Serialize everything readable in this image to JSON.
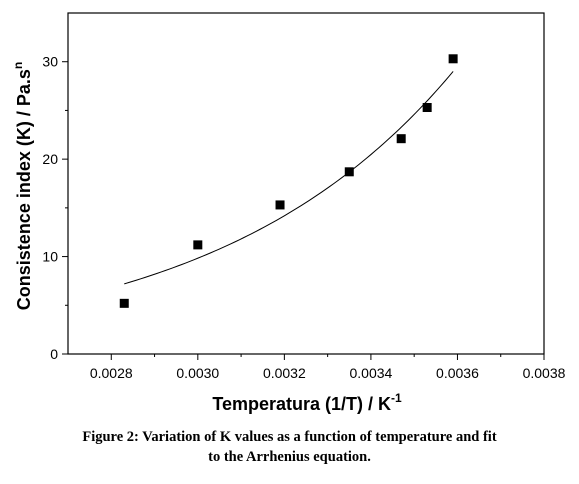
{
  "chart_data": {
    "type": "scatter",
    "xlabel": "Temperatura (1/T) / K",
    "xlabel_sup": "-1",
    "ylabel": "Consistence index (K) / Pa.s",
    "ylabel_sup": "n",
    "xlim": [
      0.0027,
      0.0038
    ],
    "ylim": [
      0,
      35
    ],
    "xticks": [
      "0.0028",
      "0.0030",
      "0.0032",
      "0.0034",
      "0.0036",
      "0.0038"
    ],
    "yticks": [
      "0",
      "10",
      "20",
      "30"
    ],
    "grid": false,
    "series": [
      {
        "points": [
          {
            "x": 0.00283,
            "y": 5.2
          },
          {
            "x": 0.003,
            "y": 11.2
          },
          {
            "x": 0.00319,
            "y": 15.3
          },
          {
            "x": 0.00335,
            "y": 18.7
          },
          {
            "x": 0.00347,
            "y": 22.1
          },
          {
            "x": 0.00353,
            "y": 25.3
          },
          {
            "x": 0.00359,
            "y": 30.3
          }
        ],
        "marker": "square",
        "color": "#000000"
      }
    ],
    "fit": {
      "kind": "Arrhenius (exponential)",
      "x_range": [
        0.00283,
        0.00359
      ],
      "y_start": 7.2,
      "y_end": 29.0,
      "color": "#000000"
    }
  },
  "caption": {
    "line1": "Figure 2: Variation of K values as a function of temperature and fit",
    "line2": "to the Arrhenius equation."
  }
}
